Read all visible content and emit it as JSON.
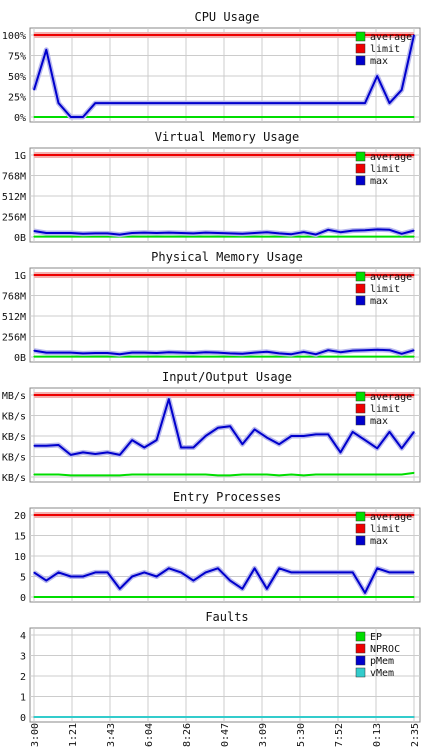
{
  "colors": {
    "average": "#00dd00",
    "limit": "#ee0000",
    "max": "#0000cc",
    "vmem": "#33cccc",
    "grid": "#cccccc",
    "border": "#888888"
  },
  "x_labels": [
    "3:00",
    "1:21",
    "3:43",
    "6:04",
    "8:26",
    "0:47",
    "3:09",
    "5:30",
    "7:52",
    "0:13",
    "2:35"
  ],
  "chart_data": [
    {
      "type": "line",
      "title": "CPU Usage",
      "y_ticks": [
        "100%",
        "75%",
        "50%",
        "25%",
        "0%"
      ],
      "ylim": [
        0,
        100
      ],
      "grid": true,
      "legend_position": "top-right",
      "series": [
        {
          "name": "average",
          "color": "#00dd00",
          "values": [
            0,
            0,
            0,
            0,
            0,
            0,
            0,
            0,
            0,
            0,
            0,
            0,
            0,
            0,
            0,
            0,
            0,
            0,
            0,
            0,
            0,
            0,
            0,
            0,
            0,
            0,
            0,
            0,
            0,
            0,
            0,
            0
          ]
        },
        {
          "name": "limit",
          "color": "#ee0000",
          "values": [
            100,
            100,
            100,
            100,
            100,
            100,
            100,
            100,
            100,
            100,
            100,
            100,
            100,
            100,
            100,
            100,
            100,
            100,
            100,
            100,
            100,
            100,
            100,
            100,
            100,
            100,
            100,
            100,
            100,
            100,
            100,
            100
          ]
        },
        {
          "name": "max",
          "color": "#0000cc",
          "values": [
            33,
            82,
            17,
            0,
            0,
            17,
            17,
            17,
            17,
            17,
            17,
            17,
            17,
            17,
            17,
            17,
            17,
            17,
            17,
            17,
            17,
            17,
            17,
            17,
            17,
            17,
            17,
            17,
            50,
            17,
            33,
            100
          ]
        }
      ]
    },
    {
      "type": "line",
      "title": "Virtual Memory Usage",
      "y_ticks": [
        "1G",
        "768M",
        "512M",
        "256M",
        "0B"
      ],
      "ylim": [
        0,
        1024
      ],
      "grid": true,
      "legend_position": "top-right",
      "series": [
        {
          "name": "average",
          "color": "#00dd00",
          "values": [
            5,
            5,
            5,
            5,
            5,
            5,
            5,
            5,
            5,
            5,
            5,
            5,
            5,
            5,
            5,
            5,
            5,
            5,
            5,
            5,
            5,
            5,
            5,
            5,
            5,
            5,
            5,
            5,
            5,
            5,
            5,
            5
          ]
        },
        {
          "name": "limit",
          "color": "#ee0000",
          "values": [
            1024,
            1024,
            1024,
            1024,
            1024,
            1024,
            1024,
            1024,
            1024,
            1024,
            1024,
            1024,
            1024,
            1024,
            1024,
            1024,
            1024,
            1024,
            1024,
            1024,
            1024,
            1024,
            1024,
            1024,
            1024,
            1024,
            1024,
            1024,
            1024,
            1024,
            1024,
            1024
          ]
        },
        {
          "name": "max",
          "color": "#0000cc",
          "values": [
            75,
            50,
            50,
            50,
            40,
            45,
            45,
            30,
            50,
            55,
            50,
            55,
            50,
            45,
            55,
            50,
            45,
            40,
            50,
            60,
            45,
            35,
            60,
            30,
            90,
            60,
            80,
            85,
            95,
            90,
            40,
            80
          ]
        }
      ]
    },
    {
      "type": "line",
      "title": "Physical Memory Usage",
      "y_ticks": [
        "1G",
        "768M",
        "512M",
        "256M",
        "0B"
      ],
      "ylim": [
        0,
        1024
      ],
      "grid": true,
      "legend_position": "top-right",
      "series": [
        {
          "name": "average",
          "color": "#00dd00",
          "values": [
            5,
            5,
            5,
            5,
            5,
            5,
            5,
            5,
            5,
            5,
            5,
            5,
            5,
            5,
            5,
            5,
            5,
            5,
            5,
            5,
            5,
            5,
            5,
            5,
            5,
            5,
            5,
            5,
            5,
            5,
            5,
            5
          ]
        },
        {
          "name": "limit",
          "color": "#ee0000",
          "values": [
            1024,
            1024,
            1024,
            1024,
            1024,
            1024,
            1024,
            1024,
            1024,
            1024,
            1024,
            1024,
            1024,
            1024,
            1024,
            1024,
            1024,
            1024,
            1024,
            1024,
            1024,
            1024,
            1024,
            1024,
            1024,
            1024,
            1024,
            1024,
            1024,
            1024,
            1024,
            1024
          ]
        },
        {
          "name": "max",
          "color": "#0000cc",
          "values": [
            80,
            55,
            55,
            55,
            45,
            50,
            50,
            35,
            55,
            55,
            50,
            60,
            55,
            50,
            60,
            55,
            45,
            40,
            55,
            65,
            45,
            35,
            65,
            35,
            85,
            60,
            80,
            85,
            90,
            85,
            40,
            85
          ]
        }
      ]
    },
    {
      "type": "line",
      "title": "Input/Output Usage",
      "y_ticks": [
        "MB/s",
        "KB/s",
        "KB/s",
        "KB/s",
        "KB/s"
      ],
      "ylim": [
        0,
        100
      ],
      "grid": true,
      "legend_position": "top-right",
      "series": [
        {
          "name": "average",
          "color": "#00dd00",
          "values": [
            3,
            3,
            3,
            2,
            2,
            2,
            2,
            2,
            3,
            3,
            3,
            3,
            3,
            3,
            3,
            2,
            2,
            3,
            3,
            3,
            2,
            3,
            2,
            3,
            3,
            3,
            3,
            3,
            3,
            3,
            3,
            5
          ]
        },
        {
          "name": "limit",
          "color": "#ee0000",
          "values": [
            100,
            100,
            100,
            100,
            100,
            100,
            100,
            100,
            100,
            100,
            100,
            100,
            100,
            100,
            100,
            100,
            100,
            100,
            100,
            100,
            100,
            100,
            100,
            100,
            100,
            100,
            100,
            100,
            100,
            100,
            100,
            100
          ]
        },
        {
          "name": "max",
          "color": "#0000cc",
          "values": [
            38,
            38,
            39,
            27,
            30,
            28,
            30,
            27,
            45,
            36,
            45,
            95,
            36,
            36,
            50,
            60,
            62,
            40,
            58,
            48,
            40,
            50,
            50,
            52,
            52,
            30,
            55,
            45,
            35,
            55,
            35,
            55
          ]
        }
      ]
    },
    {
      "type": "line",
      "title": "Entry Processes",
      "y_ticks": [
        "20",
        "15",
        "10",
        "5",
        "0"
      ],
      "ylim": [
        0,
        20
      ],
      "grid": true,
      "legend_position": "top-right",
      "series": [
        {
          "name": "average",
          "color": "#00dd00",
          "values": [
            0,
            0,
            0,
            0,
            0,
            0,
            0,
            0,
            0,
            0,
            0,
            0,
            0,
            0,
            0,
            0,
            0,
            0,
            0,
            0,
            0,
            0,
            0,
            0,
            0,
            0,
            0,
            0,
            0,
            0,
            0,
            0
          ]
        },
        {
          "name": "limit",
          "color": "#ee0000",
          "values": [
            20,
            20,
            20,
            20,
            20,
            20,
            20,
            20,
            20,
            20,
            20,
            20,
            20,
            20,
            20,
            20,
            20,
            20,
            20,
            20,
            20,
            20,
            20,
            20,
            20,
            20,
            20,
            20,
            20,
            20,
            20,
            20
          ]
        },
        {
          "name": "max",
          "color": "#0000cc",
          "values": [
            6,
            4,
            6,
            5,
            5,
            6,
            6,
            2,
            5,
            6,
            5,
            7,
            6,
            4,
            6,
            7,
            4,
            2,
            7,
            2,
            7,
            6,
            6,
            6,
            6,
            6,
            6,
            1,
            7,
            6,
            6,
            6
          ]
        }
      ]
    },
    {
      "type": "line",
      "title": "Faults",
      "y_ticks": [
        "4",
        "3",
        "2",
        "1",
        "0"
      ],
      "ylim": [
        0,
        4
      ],
      "grid": true,
      "legend_position": "top-right",
      "series": [
        {
          "name": "EP",
          "color": "#00dd00",
          "values": [
            0,
            0,
            0,
            0,
            0,
            0,
            0,
            0,
            0,
            0,
            0,
            0,
            0,
            0,
            0,
            0,
            0,
            0,
            0,
            0,
            0,
            0,
            0,
            0,
            0,
            0,
            0,
            0,
            0,
            0,
            0,
            0
          ]
        },
        {
          "name": "NPROC",
          "color": "#ee0000",
          "values": [
            0,
            0,
            0,
            0,
            0,
            0,
            0,
            0,
            0,
            0,
            0,
            0,
            0,
            0,
            0,
            0,
            0,
            0,
            0,
            0,
            0,
            0,
            0,
            0,
            0,
            0,
            0,
            0,
            0,
            0,
            0,
            0
          ]
        },
        {
          "name": "pMem",
          "color": "#0000cc",
          "values": [
            0,
            0,
            0,
            0,
            0,
            0,
            0,
            0,
            0,
            0,
            0,
            0,
            0,
            0,
            0,
            0,
            0,
            0,
            0,
            0,
            0,
            0,
            0,
            0,
            0,
            0,
            0,
            0,
            0,
            0,
            0,
            0
          ]
        },
        {
          "name": "vMem",
          "color": "#33cccc",
          "values": [
            0,
            0,
            0,
            0,
            0,
            0,
            0,
            0,
            0,
            0,
            0,
            0,
            0,
            0,
            0,
            0,
            0,
            0,
            0,
            0,
            0,
            0,
            0,
            0,
            0,
            0,
            0,
            0,
            0,
            0,
            0,
            0
          ]
        }
      ]
    }
  ]
}
